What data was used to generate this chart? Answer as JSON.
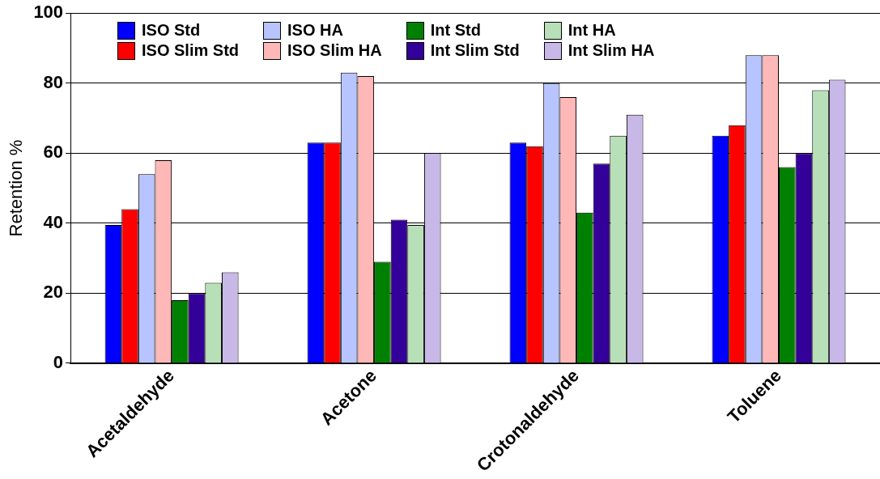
{
  "chart_data": {
    "type": "bar",
    "ylabel": "Retention %",
    "categories": [
      "Acetaldehyde",
      "Acetone",
      "Crotonaldehyde",
      "Toluene"
    ],
    "series": [
      {
        "name": "ISO Std",
        "color": "#0000ff",
        "values": [
          39.5,
          63,
          63,
          65
        ]
      },
      {
        "name": "ISO Slim Std",
        "color": "#ff0000",
        "values": [
          44,
          63,
          62,
          68
        ]
      },
      {
        "name": "ISO HA",
        "color": "#b8c4ff",
        "values": [
          54,
          83,
          80,
          88
        ]
      },
      {
        "name": "ISO Slim HA",
        "color": "#ffb8b8",
        "values": [
          58,
          82,
          76,
          88
        ]
      },
      {
        "name": "Int Std",
        "color": "#008000",
        "values": [
          18,
          29,
          43,
          56
        ]
      },
      {
        "name": "Int Slim Std",
        "color": "#330099",
        "values": [
          20,
          41,
          57,
          60
        ]
      },
      {
        "name": "Int HA",
        "color": "#b8e0b8",
        "values": [
          23,
          39.5,
          65,
          78
        ]
      },
      {
        "name": "Int Slim HA",
        "color": "#c8b8e8",
        "values": [
          26,
          60,
          71,
          81
        ]
      }
    ],
    "ylim": [
      0,
      100
    ],
    "yticks": [
      0,
      20,
      40,
      60,
      80,
      100
    ],
    "grid": "y",
    "legend": "top"
  }
}
